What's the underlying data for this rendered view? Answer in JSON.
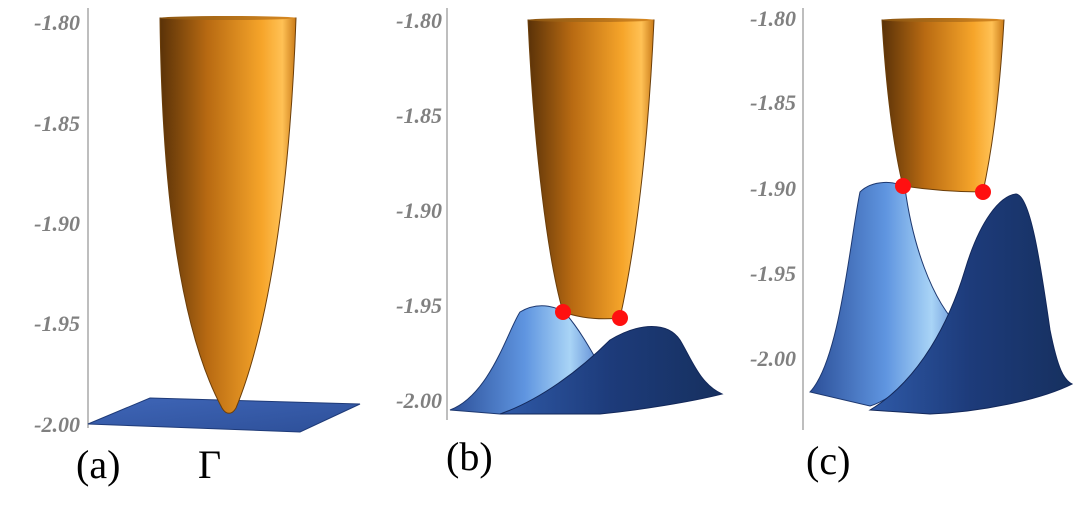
{
  "chart_data": [
    {
      "type": "surface3d",
      "panel_label": "(a)",
      "x_marker": "Γ",
      "z_ticks": [
        "-1.80",
        "-1.85",
        "-1.90",
        "-1.95",
        "-2.00"
      ],
      "zlim": [
        -2.0,
        -1.8
      ],
      "upper_band": {
        "color": "#e9951c",
        "shape": "paraboloid",
        "min": -1.995
      },
      "lower_band": {
        "color": "#3a63b5",
        "shape": "flat",
        "level": -2.0
      },
      "crossing_points": []
    },
    {
      "type": "surface3d",
      "panel_label": "(b)",
      "z_ticks": [
        "-1.80",
        "-1.85",
        "-1.90",
        "-1.95",
        "-2.00"
      ],
      "zlim": [
        -2.0,
        -1.8
      ],
      "upper_band": {
        "color": "#e9951c",
        "shape": "paraboloid",
        "min": -1.955
      },
      "lower_band": {
        "color": "#3a63b5",
        "shape": "double-peaked",
        "max": -1.955
      },
      "crossing_points": [
        {
          "z": -1.953,
          "color": "#ff0000"
        },
        {
          "z": -1.956,
          "color": "#ff0000"
        }
      ]
    },
    {
      "type": "surface3d",
      "panel_label": "(c)",
      "z_ticks": [
        "-1.80",
        "-1.85",
        "-1.90",
        "-1.95",
        "-2.00"
      ],
      "zlim": [
        -2.0,
        -1.8
      ],
      "upper_band": {
        "color": "#e9951c",
        "shape": "paraboloid",
        "min": -1.9
      },
      "lower_band": {
        "color": "#3a63b5",
        "shape": "double-peaked",
        "max": -1.9
      },
      "crossing_points": [
        {
          "z": -1.897,
          "color": "#ff0000"
        },
        {
          "z": -1.9,
          "color": "#ff0000"
        }
      ]
    }
  ]
}
